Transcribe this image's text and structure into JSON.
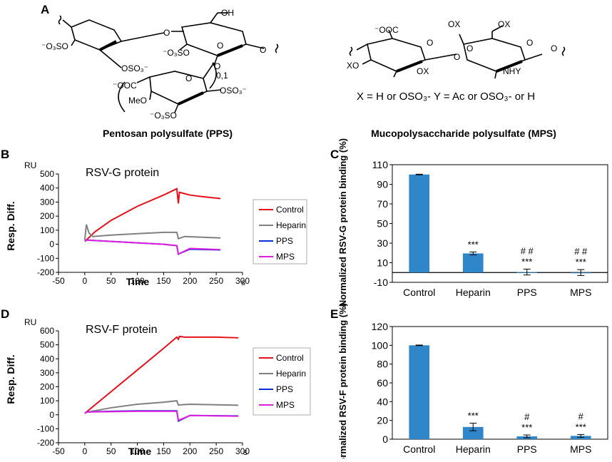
{
  "panel_labels": {
    "a": "A",
    "b": "B",
    "c": "C",
    "d": "D",
    "e": "E"
  },
  "structures": {
    "pps_name": "Pentosan polysulfate (PPS)",
    "mps_name": "Mucopolysaccharide polysulfate (MPS)",
    "pps_labels": [
      "OH",
      "⁻O₃SO",
      "OSO₃⁻",
      "O",
      "⁻O₃SO",
      "O",
      "0,1",
      "⁻OOC",
      "O",
      "O",
      "OSO₃⁻",
      "MeO",
      "⁻O₃SO",
      "O"
    ],
    "mps_labels": [
      "⁻OOC",
      "OX",
      "OX",
      "O",
      "O",
      "O",
      "XO",
      "OX",
      "O",
      "NHY",
      "O"
    ],
    "mps_legend": "X = H or OSO₃-  Y = Ac or OSO₃- or H"
  },
  "chart_data": [
    {
      "id": "B",
      "type": "line",
      "title": "RSV-G protein",
      "xlabel": "Time",
      "xunit": "s",
      "ylabel": "Resp. Diff.",
      "yunit": "RU",
      "xlim": [
        -50,
        300
      ],
      "ylim": [
        -200,
        500
      ],
      "xticks": [
        -50,
        0,
        50,
        100,
        150,
        200,
        250,
        300
      ],
      "yticks": [
        -200,
        -100,
        0,
        100,
        200,
        300,
        400,
        500
      ],
      "series": [
        {
          "name": "Control",
          "color": "#e8101a",
          "x": [
            0,
            20,
            50,
            100,
            150,
            175,
            178,
            180,
            190,
            200,
            220,
            258
          ],
          "y": [
            20,
            90,
            170,
            270,
            350,
            395,
            290,
            370,
            360,
            350,
            340,
            325
          ]
        },
        {
          "name": "Heparin",
          "color": "#808080",
          "x": [
            0,
            3,
            8,
            15,
            50,
            100,
            150,
            175,
            178,
            190,
            258
          ],
          "y": [
            30,
            140,
            80,
            55,
            65,
            75,
            85,
            85,
            40,
            55,
            45
          ]
        },
        {
          "name": "PPS",
          "color": "#0b2fd8",
          "x": [
            0,
            3,
            50,
            100,
            150,
            175,
            178,
            200,
            258
          ],
          "y": [
            20,
            30,
            20,
            10,
            0,
            -10,
            -70,
            -35,
            -40
          ]
        },
        {
          "name": "MPS",
          "color": "#e020e0",
          "x": [
            0,
            3,
            50,
            100,
            150,
            175,
            178,
            200,
            258
          ],
          "y": [
            20,
            30,
            20,
            10,
            0,
            -10,
            -70,
            -30,
            -38
          ]
        }
      ]
    },
    {
      "id": "C",
      "type": "bar",
      "ylabel": "Normalized RSV-G protein binding (%)",
      "categories": [
        "Control",
        "Heparin",
        "PPS",
        "MPS"
      ],
      "values": [
        100,
        19.5,
        0.5,
        0
      ],
      "errors": [
        0.3,
        1.5,
        3,
        3
      ],
      "ylim": [
        -10,
        110
      ],
      "yticks": [
        -10,
        10,
        30,
        50,
        70,
        90,
        110
      ],
      "annotations": [
        {
          "category": "Heparin",
          "lines": [
            "***"
          ]
        },
        {
          "category": "PPS",
          "lines": [
            "# #",
            "***"
          ]
        },
        {
          "category": "MPS",
          "lines": [
            "# #",
            "***"
          ]
        }
      ]
    },
    {
      "id": "D",
      "type": "line",
      "title": "RSV-F protein",
      "xlabel": "Time",
      "xunit": "s",
      "ylabel": "Resp. Diff.",
      "yunit": "RU",
      "xlim": [
        -50,
        300
      ],
      "ylim": [
        -200,
        600
      ],
      "xticks": [
        -50,
        0,
        50,
        100,
        150,
        200,
        250,
        300
      ],
      "yticks": [
        -200,
        -100,
        0,
        100,
        200,
        300,
        400,
        500,
        600
      ],
      "series": [
        {
          "name": "Control",
          "color": "#e8101a",
          "x": [
            0,
            50,
            100,
            150,
            175,
            178,
            180,
            190,
            250,
            292
          ],
          "y": [
            10,
            165,
            320,
            475,
            555,
            540,
            560,
            555,
            555,
            550
          ]
        },
        {
          "name": "Heparin",
          "color": "#808080",
          "x": [
            0,
            50,
            100,
            150,
            175,
            178,
            200,
            292
          ],
          "y": [
            15,
            50,
            75,
            90,
            100,
            70,
            75,
            68
          ]
        },
        {
          "name": "PPS",
          "color": "#0b2fd8",
          "x": [
            0,
            3,
            50,
            100,
            150,
            175,
            178,
            200,
            292
          ],
          "y": [
            10,
            20,
            25,
            28,
            28,
            28,
            -45,
            -5,
            -8
          ]
        },
        {
          "name": "MPS",
          "color": "#e020e0",
          "x": [
            0,
            3,
            50,
            100,
            150,
            175,
            178,
            200,
            292
          ],
          "y": [
            10,
            20,
            22,
            25,
            25,
            25,
            -40,
            -5,
            -10
          ]
        }
      ]
    },
    {
      "id": "E",
      "type": "bar",
      "ylabel": "Normalized RSV-F protein binding (%)",
      "categories": [
        "Control",
        "Heparin",
        "PPS",
        "MPS"
      ],
      "values": [
        100,
        13,
        3,
        3.5
      ],
      "errors": [
        0.3,
        4,
        1.5,
        1.5
      ],
      "ylim": [
        0,
        120
      ],
      "yticks": [
        0,
        20,
        40,
        60,
        80,
        100,
        120
      ],
      "annotations": [
        {
          "category": "Heparin",
          "lines": [
            "***"
          ]
        },
        {
          "category": "PPS",
          "lines": [
            "#",
            "***"
          ]
        },
        {
          "category": "MPS",
          "lines": [
            "#",
            "***"
          ]
        }
      ]
    }
  ]
}
